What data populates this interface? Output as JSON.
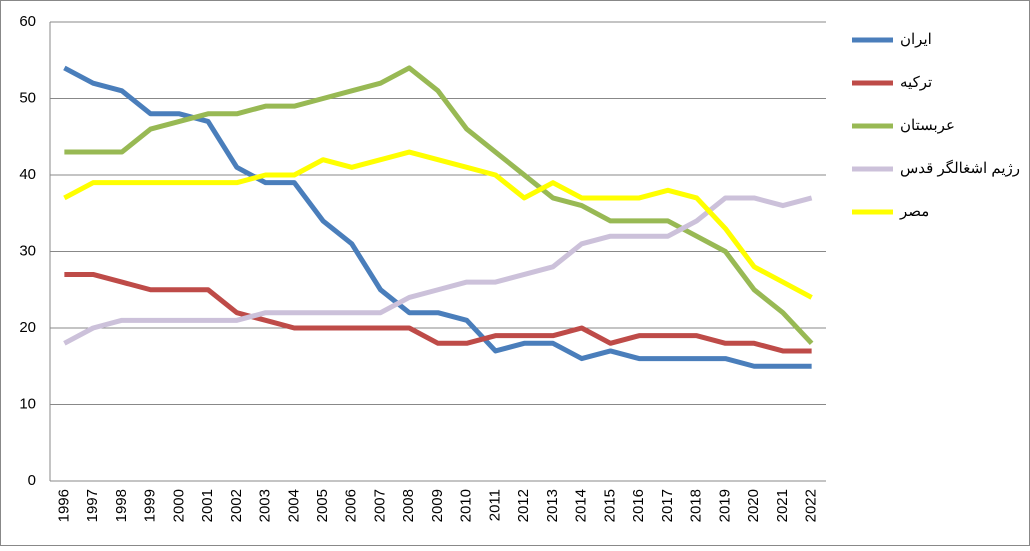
{
  "chart_data": {
    "type": "line",
    "categories": [
      "1996",
      "1997",
      "1998",
      "1999",
      "2000",
      "2001",
      "2002",
      "2003",
      "2004",
      "2005",
      "2006",
      "2007",
      "2008",
      "2009",
      "2010",
      "2011",
      "2012",
      "2013",
      "2014",
      "2015",
      "2016",
      "2017",
      "2018",
      "2019",
      "2020",
      "2021",
      "2022"
    ],
    "series": [
      {
        "name": "ایران",
        "color": "#4a7ebb",
        "values": [
          54,
          52,
          51,
          48,
          48,
          47,
          41,
          39,
          39,
          34,
          31,
          25,
          22,
          22,
          21,
          17,
          18,
          18,
          16,
          17,
          16,
          16,
          16,
          16,
          15,
          15,
          15
        ]
      },
      {
        "name": "ترکیه",
        "color": "#be4b48",
        "values": [
          27,
          27,
          26,
          25,
          25,
          25,
          22,
          21,
          20,
          20,
          20,
          20,
          20,
          18,
          18,
          19,
          19,
          19,
          20,
          18,
          19,
          19,
          19,
          18,
          18,
          17,
          17
        ]
      },
      {
        "name": "عربستان",
        "color": "#98b954",
        "values": [
          43,
          43,
          43,
          46,
          47,
          48,
          48,
          49,
          49,
          50,
          51,
          52,
          54,
          51,
          46,
          43,
          40,
          37,
          36,
          34,
          34,
          34,
          32,
          30,
          25,
          22,
          18
        ]
      },
      {
        "name": "رژیم اشغالگر قدس",
        "color": "#ccc1da",
        "values": [
          18,
          20,
          21,
          21,
          21,
          21,
          21,
          22,
          22,
          22,
          22,
          22,
          24,
          25,
          26,
          26,
          27,
          28,
          31,
          32,
          32,
          32,
          34,
          37,
          37,
          36,
          37
        ]
      },
      {
        "name": "مصر",
        "color": "#ffff00",
        "values": [
          37,
          39,
          39,
          39,
          39,
          39,
          39,
          40,
          40,
          42,
          41,
          42,
          43,
          42,
          41,
          40,
          37,
          39,
          37,
          37,
          37,
          38,
          37,
          33,
          28,
          26,
          24
        ]
      }
    ],
    "ylim": [
      0,
      60
    ],
    "yticks": [
      0,
      10,
      20,
      30,
      40,
      50,
      60
    ],
    "grid": true,
    "legend": "right"
  }
}
